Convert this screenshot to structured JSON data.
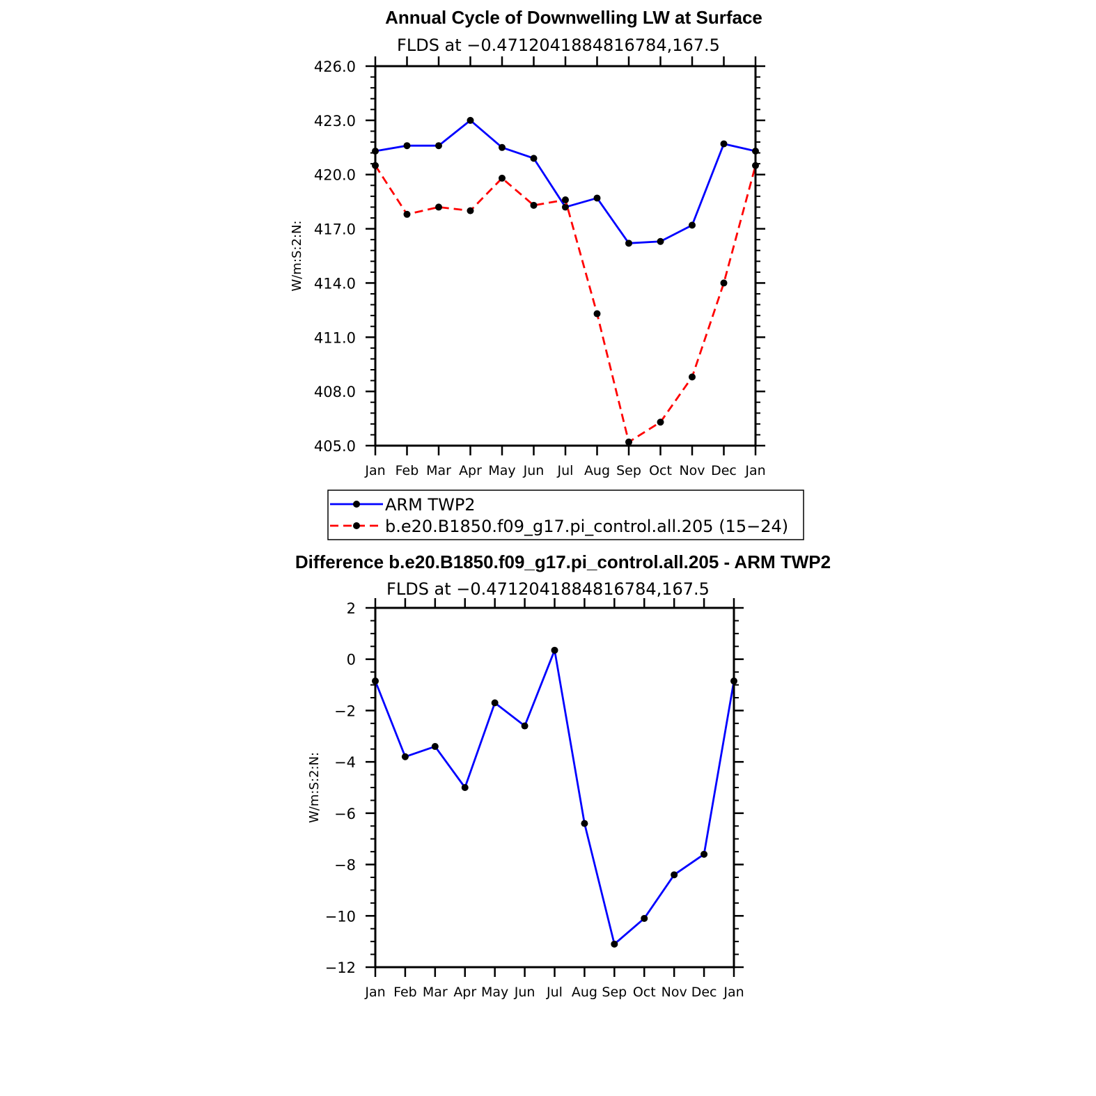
{
  "chart_data": [
    {
      "type": "line",
      "title": "Annual Cycle of Downwelling LW at Surface",
      "subtitle": "FLDS at −0.4712041884816784,167.5",
      "ylabel": "W/m:S:2:N:",
      "xlabel": "",
      "ylim": [
        405.0,
        426.0
      ],
      "yticks": [
        "405.0",
        "408.0",
        "411.0",
        "414.0",
        "417.0",
        "420.0",
        "423.0",
        "426.0"
      ],
      "categories": [
        "Jan",
        "Feb",
        "Mar",
        "Apr",
        "May",
        "Jun",
        "Jul",
        "Aug",
        "Sep",
        "Oct",
        "Nov",
        "Dec",
        "Jan"
      ],
      "series": [
        {
          "name": "ARM TWP2",
          "color": "#0000ff",
          "dash": "solid",
          "values": [
            421.3,
            421.6,
            421.6,
            423.0,
            421.5,
            420.9,
            418.2,
            418.7,
            416.2,
            416.3,
            417.2,
            421.7,
            421.3
          ]
        },
        {
          "name": "b.e20.B1850.f09_g17.pi_control.all.205 (15−24)",
          "color": "#ff0000",
          "dash": "dashed",
          "values": [
            420.5,
            417.8,
            418.2,
            418.0,
            419.8,
            418.3,
            418.6,
            412.3,
            405.2,
            406.3,
            408.8,
            414.0,
            420.5
          ]
        }
      ],
      "legend": "below"
    },
    {
      "type": "line",
      "title": "Difference b.e20.B1850.f09_g17.pi_control.all.205 - ARM TWP2",
      "subtitle": "FLDS at −0.4712041884816784,167.5",
      "ylabel": "W/m:S:2:N:",
      "xlabel": "",
      "ylim": [
        -12,
        2
      ],
      "yticks": [
        "−12",
        "−10",
        "−8",
        "−6",
        "−4",
        "−2",
        "0",
        "2"
      ],
      "categories": [
        "Jan",
        "Feb",
        "Mar",
        "Apr",
        "May",
        "Jun",
        "Jul",
        "Aug",
        "Sep",
        "Oct",
        "Nov",
        "Dec",
        "Jan"
      ],
      "series": [
        {
          "color": "#0000ff",
          "dash": "solid",
          "values": [
            -0.85,
            -3.8,
            -3.4,
            -5.0,
            -1.7,
            -2.6,
            0.35,
            -6.4,
            -11.1,
            -10.1,
            -8.4,
            -7.6,
            -0.85
          ]
        }
      ]
    }
  ]
}
